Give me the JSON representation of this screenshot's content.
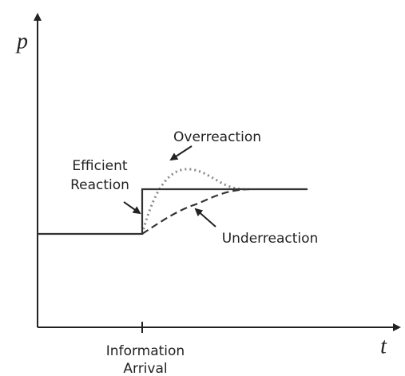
{
  "axes": {
    "y_label": "p",
    "x_label": "t"
  },
  "labels": {
    "overreaction": "Overreaction",
    "efficient_reaction": [
      "Efficient",
      "Reaction"
    ],
    "underreaction": "Underreaction",
    "information_arrival": [
      "Information",
      "Arrival"
    ]
  }
}
